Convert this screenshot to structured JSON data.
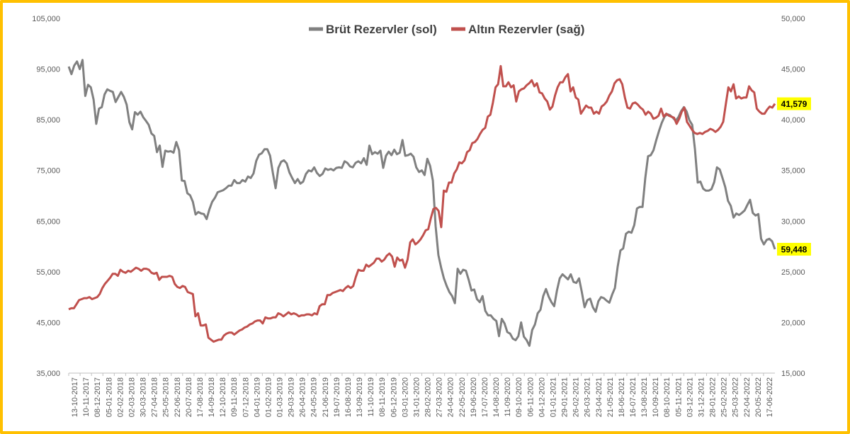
{
  "chart_data": {
    "type": "line",
    "title": "",
    "legend_position": "top-center",
    "grid": false,
    "y_left": {
      "min": 35000,
      "max": 105000,
      "ticks": [
        "35,000",
        "45,000",
        "55,000",
        "65,000",
        "75,000",
        "85,000",
        "95,000",
        "105,000"
      ]
    },
    "y_right": {
      "min": 15000,
      "max": 50000,
      "ticks": [
        "15,000",
        "20,000",
        "25,000",
        "30,000",
        "35,000",
        "40,000",
        "45,000",
        "50,000"
      ]
    },
    "x_tick_labels": [
      "13-10-2017",
      "10-11-2017",
      "08-12-2017",
      "05-01-2018",
      "02-02-2018",
      "02-03-2018",
      "30-03-2018",
      "27-04-2018",
      "25-05-2018",
      "22-06-2018",
      "20-07-2018",
      "17-08-2018",
      "14-09-2018",
      "12-10-2018",
      "09-11-2018",
      "07-12-2018",
      "04-01-2019",
      "01-02-2019",
      "01-03-2019",
      "29-03-2019",
      "26-04-2019",
      "24-05-2019",
      "21-06-2019",
      "19-07-2019",
      "16-08-2019",
      "13-09-2019",
      "11-10-2019",
      "08-11-2019",
      "06-12-2019",
      "03-01-2020",
      "31-01-2020",
      "28-02-2020",
      "27-03-2020",
      "24-04-2020",
      "22-05-2020",
      "19-06-2020",
      "17-07-2020",
      "14-08-2020",
      "11-09-2020",
      "09-10-2020",
      "06-11-2020",
      "04-12-2020",
      "01-01-2021",
      "29-01-2021",
      "26-02-2021",
      "26-03-2021",
      "23-04-2021",
      "21-05-2021",
      "18-06-2021",
      "16-07-2021",
      "13-08-2021",
      "10-09-2021",
      "08-10-2021",
      "05-11-2021",
      "03-12-2021",
      "31-12-2021",
      "28-01-2022",
      "25-02-2022",
      "25-03-2022",
      "22-04-2022",
      "20-05-2022",
      "17-06-2022"
    ],
    "series": [
      {
        "name": "Brüt Rezervler (sol)",
        "axis": "left",
        "color": "#808080",
        "end_label": "59,448",
        "values": [
          95500,
          94000,
          95700,
          96500,
          95000,
          96800,
          89700,
          91900,
          91400,
          89000,
          84200,
          87200,
          87500,
          90000,
          91000,
          90700,
          90500,
          88500,
          89500,
          90500,
          89500,
          88000,
          84500,
          83100,
          86500,
          86000,
          86600,
          85500,
          84800,
          84000,
          82300,
          81800,
          78600,
          79900,
          75700,
          78900,
          78700,
          78800,
          78500,
          80600,
          79000,
          73000,
          72900,
          70500,
          70100,
          68800,
          66300,
          66800,
          66500,
          66400,
          65400,
          67300,
          68800,
          69600,
          70700,
          70900,
          71100,
          71500,
          72000,
          72000,
          73100,
          72500,
          72500,
          73100,
          72800,
          73800,
          73500,
          74400,
          76900,
          78100,
          78400,
          79200,
          79200,
          77900,
          74500,
          71500,
          75500,
          76700,
          77000,
          76400,
          74600,
          73500,
          72500,
          73300,
          72400,
          72800,
          74300,
          75000,
          74800,
          75600,
          74500,
          73900,
          74300,
          75400,
          75100,
          75300,
          75000,
          75500,
          75600,
          75500,
          76800,
          76500,
          75800,
          75600,
          76500,
          76800,
          76400,
          77400,
          76100,
          79900,
          78200,
          78600,
          78300,
          78900,
          75500,
          77900,
          78700,
          78000,
          79100,
          78200,
          78500,
          81000,
          77900,
          78000,
          78300,
          77700,
          75600,
          74700,
          75000,
          74100,
          77300,
          75900,
          73000,
          64000,
          58300,
          55800,
          53700,
          52200,
          51000,
          50200,
          48800,
          55600,
          54600,
          55400,
          55200,
          53400,
          51300,
          51500,
          49600,
          49000,
          50200,
          47300,
          46400,
          46400,
          45700,
          45300,
          42300,
          45700,
          44800,
          43100,
          42800,
          41800,
          41500,
          42300,
          45000,
          42200,
          41500,
          40400,
          43500,
          44600,
          46800,
          47500,
          50200,
          51600,
          50100,
          49000,
          48200,
          51300,
          53700,
          54500,
          54000,
          53500,
          54500,
          53000,
          52800,
          53700,
          51000,
          48000,
          49400,
          49700,
          48000,
          47100,
          49200,
          50000,
          49800,
          49300,
          48900,
          50500,
          51800,
          56000,
          59200,
          59600,
          62500,
          62900,
          62700,
          64200,
          67500,
          67800,
          67800,
          73500,
          77800,
          78000,
          79000,
          81000,
          82800,
          84400,
          85600,
          86100,
          85900,
          85400,
          84800,
          85500,
          86700,
          87500,
          86600,
          84900,
          84000,
          79200,
          72600,
          72800,
          71400,
          71000,
          71000,
          71300,
          72700,
          75600,
          75200,
          73500,
          71700,
          69000,
          68000,
          65700,
          66500,
          66200,
          66600,
          67100,
          68200,
          69200,
          66600,
          66100,
          66400,
          61500,
          60400,
          61300,
          61500,
          61000,
          59448
        ]
      },
      {
        "name": "Altın Rezervler (sağ)",
        "axis": "right",
        "color": "#c0504d",
        "end_label": "41,579",
        "values": [
          21300,
          21400,
          21400,
          21800,
          22200,
          22300,
          22400,
          22400,
          22500,
          22300,
          22400,
          22500,
          22800,
          23400,
          23800,
          24100,
          24400,
          24800,
          24800,
          24600,
          25200,
          25000,
          24900,
          25100,
          25000,
          25200,
          25400,
          25300,
          25100,
          25300,
          25300,
          25200,
          24900,
          24800,
          24900,
          24200,
          24500,
          24500,
          24500,
          24600,
          24500,
          23800,
          23500,
          23400,
          23600,
          23500,
          23000,
          22900,
          22800,
          20600,
          20900,
          19700,
          19700,
          19800,
          18500,
          18300,
          18100,
          18200,
          18300,
          18300,
          18700,
          18900,
          19000,
          19000,
          18800,
          19000,
          19200,
          19300,
          19500,
          19600,
          19800,
          19900,
          20100,
          20200,
          20200,
          19900,
          20500,
          20400,
          20400,
          20500,
          20500,
          20900,
          20800,
          20600,
          20800,
          21000,
          20800,
          20900,
          20800,
          20600,
          20700,
          20700,
          20800,
          20800,
          20700,
          20900,
          20800,
          21600,
          21800,
          21800,
          22700,
          22700,
          22900,
          23000,
          23100,
          23200,
          23100,
          23400,
          23600,
          23400,
          23600,
          24500,
          25200,
          25100,
          25100,
          25700,
          25500,
          25700,
          25900,
          26300,
          26300,
          26000,
          26200,
          26600,
          26800,
          26500,
          25500,
          26400,
          26100,
          26200,
          25400,
          26200,
          27900,
          28200,
          27700,
          27900,
          28200,
          28600,
          29100,
          29200,
          30300,
          31200,
          31300,
          31000,
          29400,
          33000,
          32900,
          33800,
          33800,
          34700,
          35100,
          35800,
          35700,
          36000,
          36800,
          37000,
          37700,
          37800,
          38100,
          38600,
          39000,
          39200,
          40300,
          40500,
          41700,
          43200,
          43500,
          45300,
          43300,
          43300,
          43700,
          43200,
          43400,
          41800,
          42800,
          43000,
          43100,
          43400,
          43600,
          43900,
          43300,
          43600,
          42700,
          42600,
          42100,
          41800,
          41000,
          41300,
          42400,
          43200,
          43700,
          43700,
          44200,
          44500,
          42800,
          43200,
          42200,
          42000,
          40600,
          41000,
          41400,
          41200,
          41200,
          40600,
          40800,
          40600,
          41300,
          41500,
          41800,
          42400,
          42800,
          43600,
          43900,
          44000,
          43500,
          42200,
          41200,
          41100,
          41600,
          41700,
          41500,
          41200,
          41000,
          40500,
          40800,
          40600,
          40100,
          40200,
          40400,
          41100,
          40300,
          40600,
          40400,
          40300,
          40200,
          39600,
          40100,
          40800,
          41200,
          39800,
          39400,
          39000,
          38700,
          38600,
          38700,
          38600,
          38800,
          38900,
          39100,
          39000,
          38800,
          39000,
          39300,
          39800,
          41500,
          43200,
          42800,
          43500,
          42100,
          42300,
          42100,
          42200,
          42200,
          43300,
          42900,
          42700,
          41100,
          40800,
          40600,
          40600,
          41000,
          41300,
          41200,
          41579
        ]
      }
    ]
  }
}
